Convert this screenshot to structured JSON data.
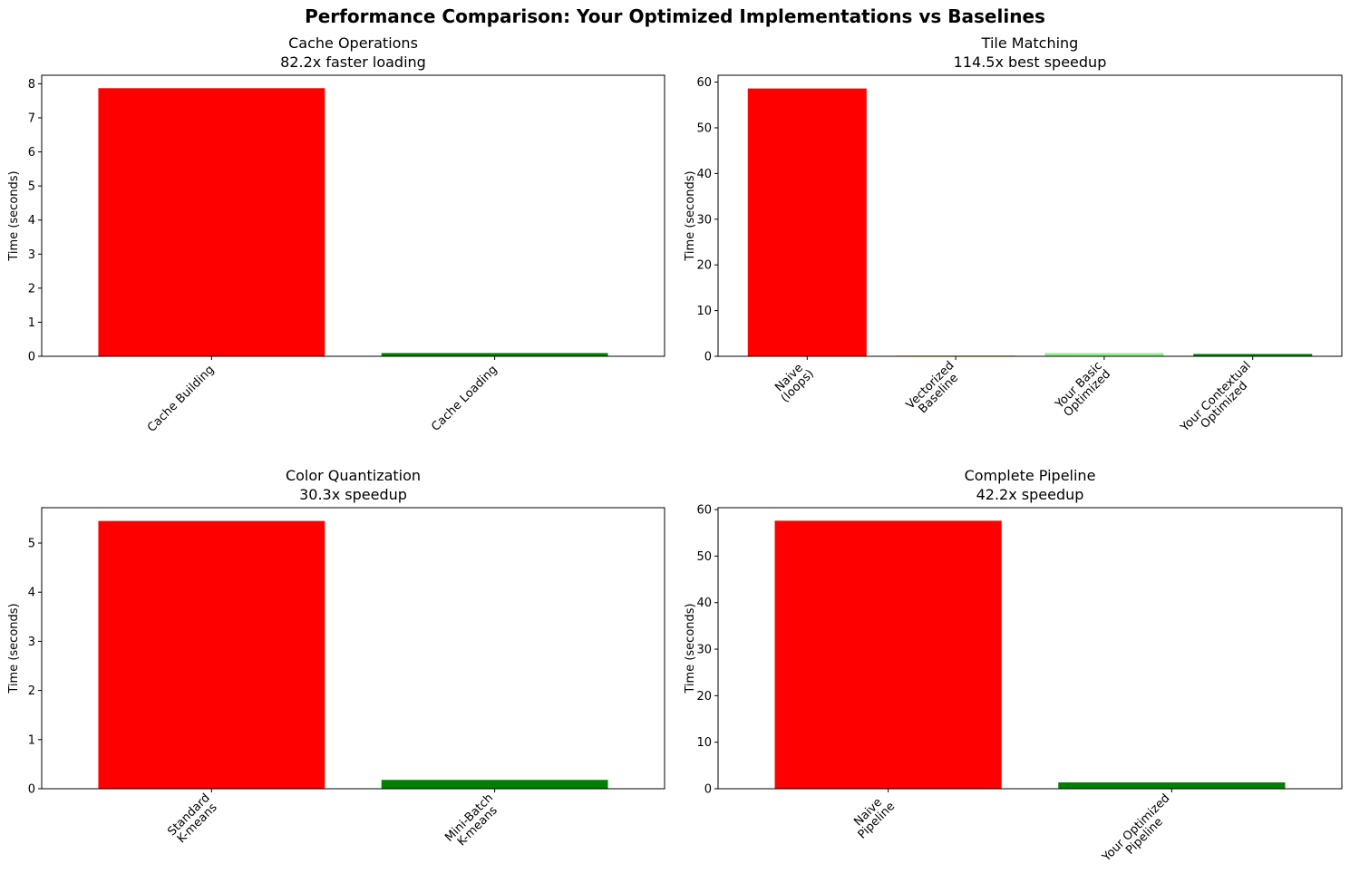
{
  "figure_title": "Performance Comparison: Your Optimized Implementations vs Baselines",
  "colors": {
    "red": "#ff0000",
    "orange": "#ffa500",
    "lightgreen": "#90ee90",
    "green": "#008000"
  },
  "chart_data": [
    {
      "type": "bar",
      "title": "Cache Operations",
      "subtitle": "82.2x faster loading",
      "ylabel": "Time (seconds)",
      "ylim": [
        0,
        8.25
      ],
      "yticks": [
        0,
        1,
        2,
        3,
        4,
        5,
        6,
        7,
        8
      ],
      "categories": [
        [
          "Cache Building"
        ],
        [
          "Cache Loading"
        ]
      ],
      "values": [
        7.87,
        0.096
      ],
      "bar_colors": [
        "red",
        "green"
      ]
    },
    {
      "type": "bar",
      "title": "Tile Matching",
      "subtitle": "114.5x best speedup",
      "ylabel": "Time (seconds)",
      "ylim": [
        0,
        61.5
      ],
      "yticks": [
        0,
        10,
        20,
        30,
        40,
        50,
        60
      ],
      "categories": [
        [
          "Naive",
          "(loops)"
        ],
        [
          "Vectorized",
          "Baseline"
        ],
        [
          "Your Basic",
          "Optimized"
        ],
        [
          "Your Contextual",
          "Optimized"
        ]
      ],
      "values": [
        58.6,
        0.15,
        0.7,
        0.51
      ],
      "bar_colors": [
        "red",
        "orange",
        "lightgreen",
        "green"
      ]
    },
    {
      "type": "bar",
      "title": "Color Quantization",
      "subtitle": "30.3x speedup",
      "ylabel": "Time (seconds)",
      "ylim": [
        0,
        5.72
      ],
      "yticks": [
        0,
        1,
        2,
        3,
        4,
        5
      ],
      "categories": [
        [
          "Standard",
          "K-means"
        ],
        [
          "Mini-Batch",
          "K-means"
        ]
      ],
      "values": [
        5.45,
        0.18
      ],
      "bar_colors": [
        "red",
        "green"
      ]
    },
    {
      "type": "bar",
      "title": "Complete Pipeline",
      "subtitle": "42.2x speedup",
      "ylabel": "Time (seconds)",
      "ylim": [
        0,
        60.4
      ],
      "yticks": [
        0,
        10,
        20,
        30,
        40,
        50,
        60
      ],
      "categories": [
        [
          "Naive",
          "Pipeline"
        ],
        [
          "Your Optimized",
          "Pipeline"
        ]
      ],
      "values": [
        57.6,
        1.37
      ],
      "bar_colors": [
        "red",
        "green"
      ]
    }
  ]
}
